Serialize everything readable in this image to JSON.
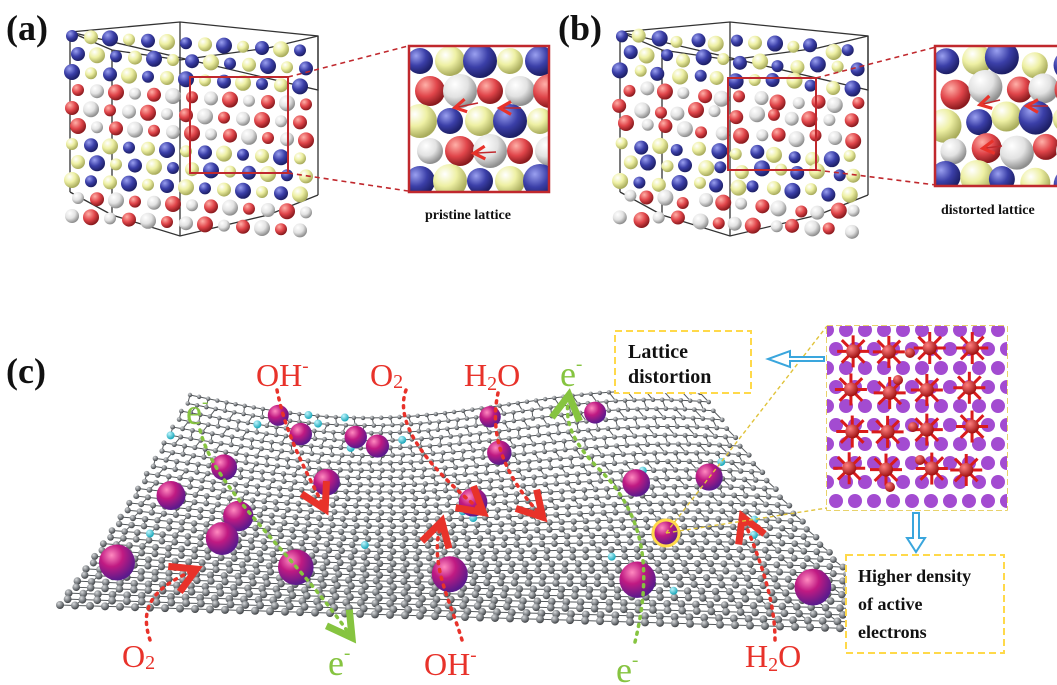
{
  "panel_a": {
    "label": "(a)",
    "caption": "pristine lattice"
  },
  "panel_b": {
    "label": "(b)",
    "caption": "distorted lattice"
  },
  "panel_c": {
    "label": "(c)",
    "callout_lattice": [
      "Lattice",
      "distortion"
    ],
    "callout_density": [
      "Higher density",
      "of active",
      "electrons"
    ],
    "species": {
      "top_oh": {
        "base": "OH",
        "sup": "-"
      },
      "top_o2": {
        "base": "O",
        "sub": "2"
      },
      "top_h2o": {
        "pre": "H",
        "sub": "2",
        "post": "O"
      },
      "top_e_left": {
        "base": "e",
        "sup": "-"
      },
      "top_e_right": {
        "base": "e",
        "sup": "-"
      },
      "bottom_o2": {
        "base": "O",
        "sub": "2"
      },
      "bottom_e_left": {
        "base": "e",
        "sup": "-"
      },
      "bottom_oh": {
        "base": "OH",
        "sup": "-"
      },
      "bottom_e_right": {
        "base": "e",
        "sup": "-"
      },
      "bottom_h2o": {
        "pre": "H",
        "sub": "2",
        "post": "O"
      }
    }
  },
  "colors": {
    "frame_red": "#c0282d",
    "arrow_red": "#e8322a",
    "electron_green": "#86c440",
    "callout_yellow": "#ffd94a",
    "sky_blue": "#3aa6dd",
    "atom_blue": "#3b3fa8",
    "atom_red": "#e0454a",
    "atom_yellow": "#eef0a4",
    "atom_white": "#e8e8e8",
    "graphene_gray": "#7d8185",
    "dopant_cyan": "#2ec4d4",
    "particle_magenta": "#b8168f",
    "lattice_purple": "#a34bd1",
    "lattice_red": "#d91b1b"
  }
}
